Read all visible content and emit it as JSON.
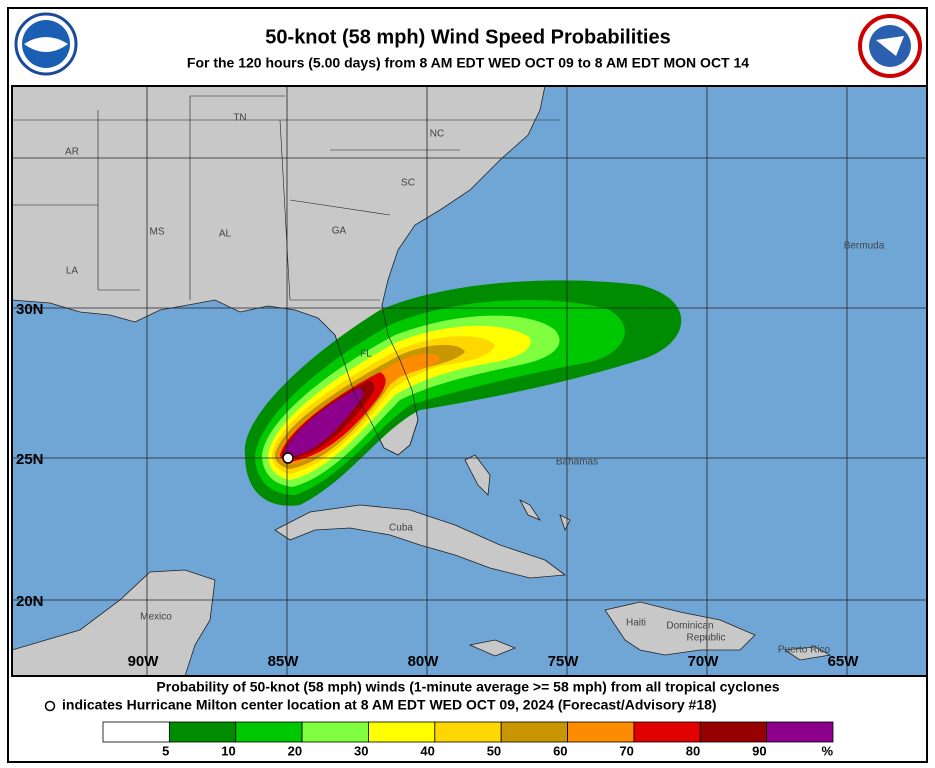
{
  "header": {
    "title": "50-knot (58 mph) Wind Speed Probabilities",
    "subtitle": "For the 120 hours (5.00 days) from 8 AM EDT WED OCT 09 to 8 AM EDT MON OCT 14"
  },
  "map": {
    "lat_labels": [
      "30N",
      "25N",
      "20N"
    ],
    "lon_labels": [
      "90W",
      "85W",
      "80W",
      "75W",
      "70W",
      "65W"
    ],
    "labels": [
      "AR",
      "TN",
      "NC",
      "SC",
      "MS",
      "AL",
      "GA",
      "LA",
      "FL",
      "Bermuda",
      "Bahamas",
      "Cuba",
      "Mexico",
      "Haiti",
      "Dominican",
      "Republic",
      "Puerto Rico"
    ]
  },
  "footer": {
    "line1": "Probability of 50-knot (58 mph) winds (1-minute average >= 58 mph) from all tropical cyclones",
    "line2": "indicates Hurricane Milton center location at 8 AM EDT WED OCT 09, 2024 (Forecast/Advisory #18)"
  },
  "legend": {
    "colors": [
      "#ffffff",
      "#008c00",
      "#00c800",
      "#80ff40",
      "#ffff00",
      "#ffd700",
      "#c89600",
      "#ff8c00",
      "#e00000",
      "#960000",
      "#8c008c"
    ],
    "labels": [
      5,
      10,
      20,
      30,
      40,
      50,
      60,
      70,
      80,
      90
    ],
    "unit": "%"
  }
}
